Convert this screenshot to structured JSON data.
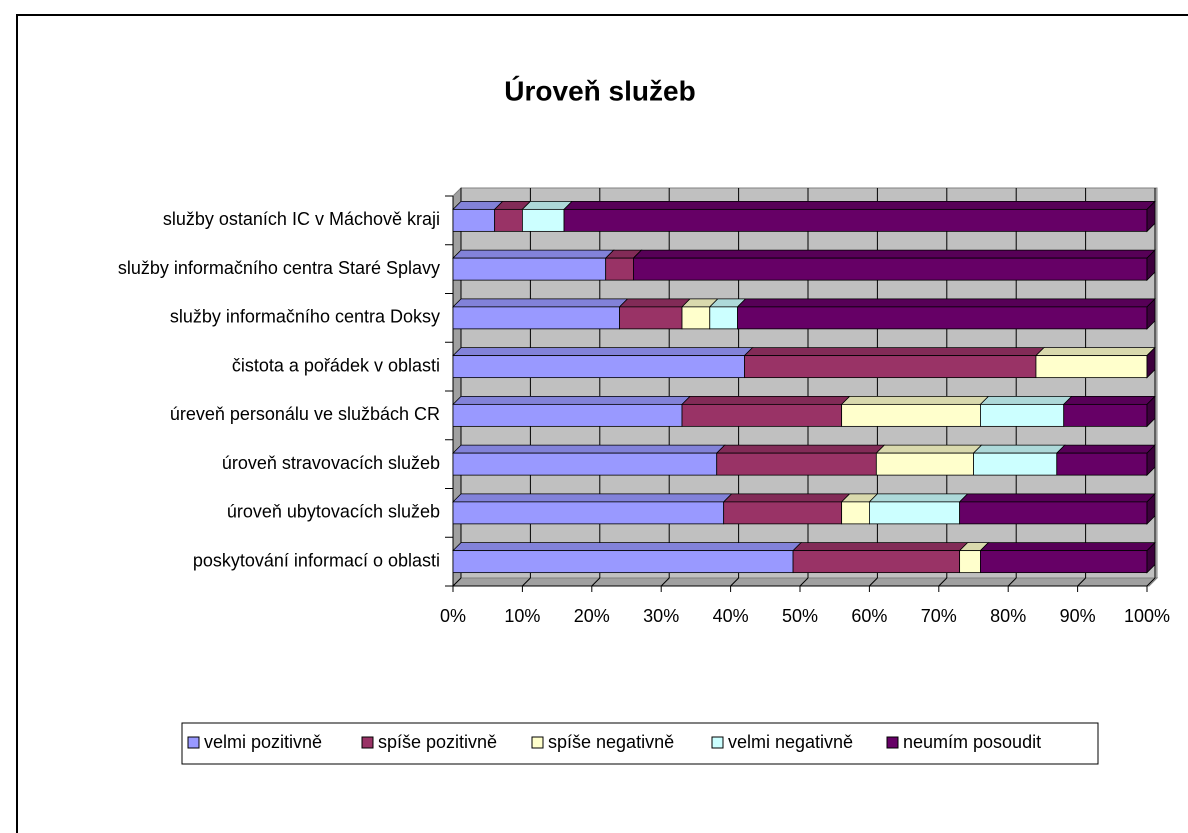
{
  "chart_data": {
    "type": "bar",
    "orientation": "horizontal",
    "stacked": "percent",
    "title": "Úroveň služeb",
    "categories": [
      "poskytování informací o oblasti",
      "úroveň ubytovacích služeb",
      "úroveň stravovacích služeb",
      "úreveň personálu ve službách CR",
      "čistota a pořádek v oblasti",
      "služby informačního centra Doksy",
      "služby informačního centra Staré Splavy",
      "služby ostaních IC v Máchově kraji"
    ],
    "series": [
      {
        "name": "velmi pozitivně",
        "color": "#9999ff",
        "values": [
          49,
          39,
          38,
          33,
          42,
          24,
          22,
          6
        ]
      },
      {
        "name": "spíše pozitivně",
        "color": "#993366",
        "values": [
          24,
          17,
          23,
          23,
          42,
          9,
          4,
          4
        ]
      },
      {
        "name": "spíše negativně",
        "color": "#ffffcc",
        "values": [
          3,
          4,
          14,
          20,
          16,
          4,
          0,
          0
        ]
      },
      {
        "name": "velmi negativně",
        "color": "#ccffff",
        "values": [
          0,
          13,
          12,
          12,
          0,
          4,
          0,
          6
        ]
      },
      {
        "name": "neumím posoudit",
        "color": "#660066",
        "values": [
          24,
          27,
          13,
          12,
          0,
          59,
          74,
          84
        ]
      }
    ],
    "xlim": [
      0,
      100
    ],
    "xticks": [
      {
        "value": 0,
        "label": "0%"
      },
      {
        "value": 10,
        "label": "10%"
      },
      {
        "value": 20,
        "label": "20%"
      },
      {
        "value": 30,
        "label": "30%"
      },
      {
        "value": 40,
        "label": "40%"
      },
      {
        "value": 50,
        "label": "50%"
      },
      {
        "value": 60,
        "label": "60%"
      },
      {
        "value": 70,
        "label": "70%"
      },
      {
        "value": 80,
        "label": "80%"
      },
      {
        "value": 90,
        "label": "90%"
      },
      {
        "value": 100,
        "label": "100%"
      }
    ],
    "grid": true,
    "legend": "bottom"
  }
}
